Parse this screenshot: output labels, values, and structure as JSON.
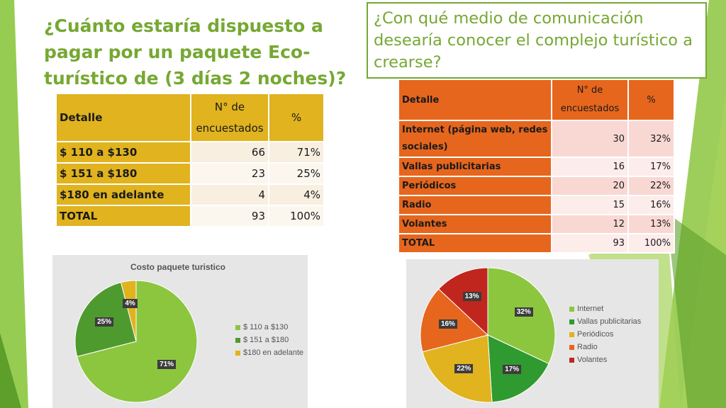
{
  "left_section": {
    "title": "¿Cuánto estaría dispuesto a pagar por un paquete Eco-turístico de (3 días 2 noches)?",
    "table": {
      "headers": [
        "Detalle",
        "N° de encuestados",
        "%"
      ],
      "rows": [
        [
          "$ 110 a $130",
          "66",
          "71%"
        ],
        [
          "$ 151 a $180",
          "23",
          "25%"
        ],
        [
          "$180 en adelante",
          "4",
          "4%"
        ],
        [
          "TOTAL",
          "93",
          "100%"
        ]
      ]
    }
  },
  "right_section": {
    "title": "¿Con qué medio de comunicación desearía conocer el complejo turístico a crearse?",
    "table": {
      "headers": [
        "Detalle",
        "N° de encuestados",
        "%"
      ],
      "rows": [
        [
          "Internet (página web, redes sociales)",
          "30",
          "32%"
        ],
        [
          "Vallas publicitarias",
          "16",
          "17%"
        ],
        [
          "Periódicos",
          "20",
          "22%"
        ],
        [
          "Radio",
          "15",
          "16%"
        ],
        [
          "Volantes",
          "12",
          "13%"
        ],
        [
          "TOTAL",
          "93",
          "100%"
        ]
      ]
    }
  },
  "chart_data": [
    {
      "type": "pie",
      "title": "Costo paquete turistico",
      "categories": [
        "$ 110 a $130",
        "$ 151 a $180",
        "$180 en adelante"
      ],
      "values": [
        71,
        25,
        4
      ],
      "data_labels": [
        "71%",
        "25%",
        "4%"
      ],
      "colors": [
        "#8cc63f",
        "#4f9a2f",
        "#e0b31f"
      ],
      "legend": "right"
    },
    {
      "type": "pie",
      "title": "",
      "categories": [
        "Internet",
        "Vallas publicitarias",
        "Periódicos",
        "Radio",
        "Volantes"
      ],
      "values": [
        32,
        17,
        22,
        16,
        13
      ],
      "data_labels": [
        "32%",
        "17%",
        "22%",
        "16%",
        "13%"
      ],
      "colors": [
        "#8cc63f",
        "#2f9a2f",
        "#e0b31f",
        "#e6661e",
        "#c0261e"
      ],
      "legend": "right"
    }
  ],
  "colors": {
    "accent_green": "#76a833",
    "gold": "#e0b31f",
    "orange": "#e6661e"
  }
}
